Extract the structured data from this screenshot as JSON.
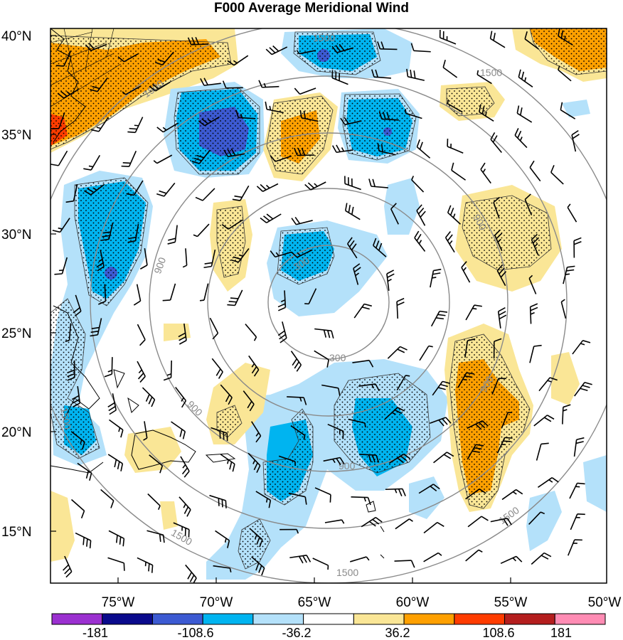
{
  "title": "F000 Average Meridional Wind",
  "lat_labels": [
    "40°N",
    "35°N",
    "30°N",
    "25°N",
    "20°N",
    "15°N"
  ],
  "lon_labels": [
    "75°W",
    "70°W",
    "65°W",
    "60°W",
    "55°W",
    "50°W"
  ],
  "colorbar": {
    "colors": [
      "#9b30d0",
      "#0a0a8c",
      "#3c5ad2",
      "#00b4f0",
      "#b4e1fa",
      "#ffffff",
      "#fae696",
      "#ffa000",
      "#ff3c00",
      "#b41e1e",
      "#ff8cb4"
    ],
    "labels": [
      "-181",
      "-108.6",
      "-36.2",
      "36.2",
      "108.6",
      "181"
    ]
  },
  "contour_labels": [
    "1500",
    "1500",
    "1500",
    "1500",
    "900",
    "900",
    "900",
    "900",
    "900",
    "300",
    "300",
    "1500",
    "1500"
  ],
  "colors": {
    "light_blue": "#b4e1fa",
    "cyan": "#00b4f0",
    "blue": "#3c5ad2",
    "light_yellow": "#fae696",
    "orange": "#ffa000",
    "red": "#ff3c00",
    "contour_gray": "#8a8a8a"
  }
}
